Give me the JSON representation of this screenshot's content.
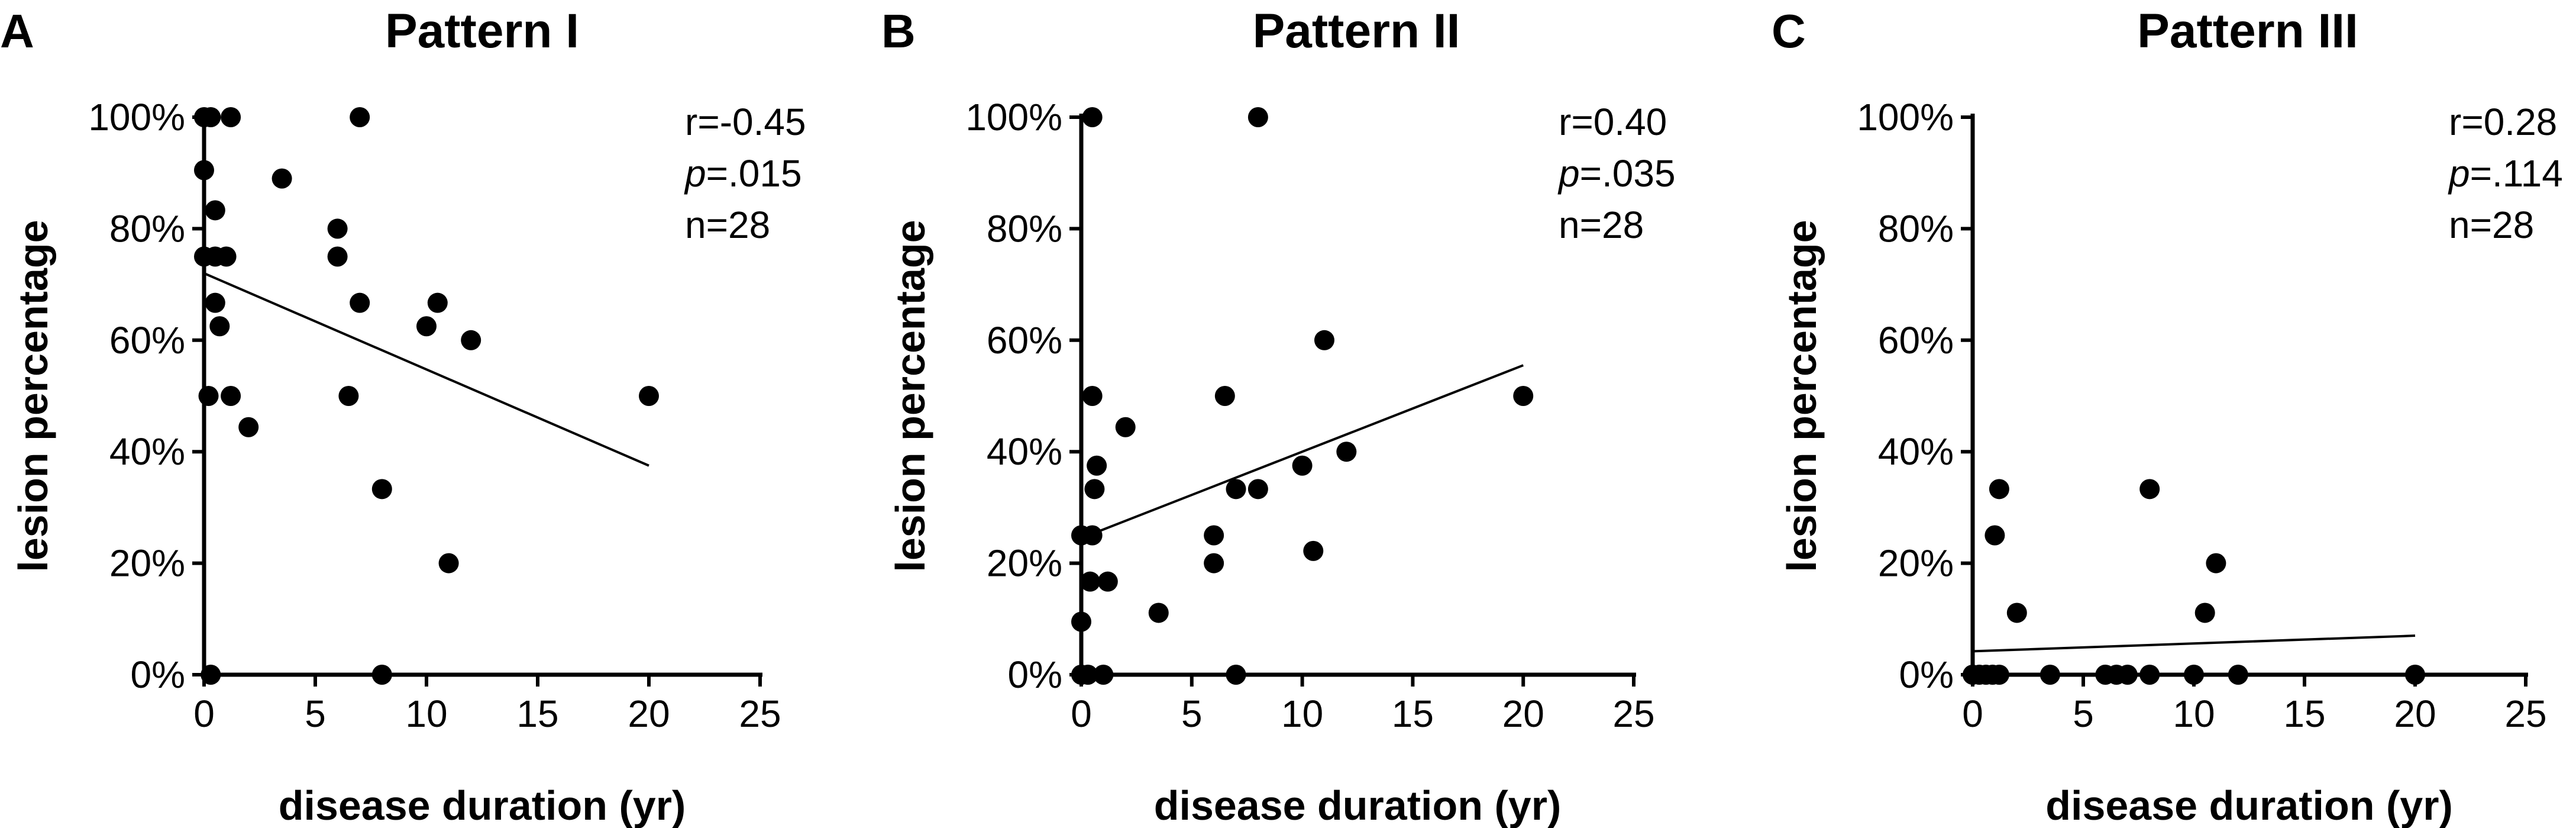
{
  "figure": {
    "ylabel": "lesion percentage",
    "xlabel": "disease duration (yr)",
    "x_ticks": [
      "0",
      "5",
      "10",
      "15",
      "20",
      "25"
    ],
    "y_ticks": [
      "0%",
      "20%",
      "40%",
      "60%",
      "80%",
      "100%"
    ]
  },
  "chart_data": [
    {
      "type": "scatter",
      "panel": "A",
      "title": "Pattern I",
      "xlabel": "disease duration (yr)",
      "ylabel": "lesion percentage",
      "xlim": [
        0,
        25
      ],
      "ylim": [
        0,
        100
      ],
      "stats": {
        "r": "r=-0.45",
        "p_symbol": "p",
        "p_value": "=.015",
        "n": "n=28"
      },
      "trendline": {
        "x": [
          0,
          20
        ],
        "y": [
          72,
          37.5
        ]
      },
      "points": [
        [
          0,
          100
        ],
        [
          0.3,
          100
        ],
        [
          1.2,
          100
        ],
        [
          7,
          100
        ],
        [
          0,
          90.5
        ],
        [
          3.5,
          89
        ],
        [
          0.5,
          83.3
        ],
        [
          0,
          75
        ],
        [
          0.5,
          75
        ],
        [
          1,
          75
        ],
        [
          6,
          80
        ],
        [
          6,
          75
        ],
        [
          0.5,
          66.7
        ],
        [
          7,
          66.7
        ],
        [
          10.5,
          66.7
        ],
        [
          0.7,
          62.5
        ],
        [
          10,
          62.5
        ],
        [
          12,
          60
        ],
        [
          0.2,
          50
        ],
        [
          1.2,
          50
        ],
        [
          6.5,
          50
        ],
        [
          20,
          50
        ],
        [
          2,
          44.4
        ],
        [
          8,
          33.3
        ],
        [
          11,
          20
        ],
        [
          0.3,
          0
        ],
        [
          8,
          0
        ]
      ]
    },
    {
      "type": "scatter",
      "panel": "B",
      "title": "Pattern II",
      "xlabel": "disease duration (yr)",
      "ylabel": "lesion percentage",
      "xlim": [
        0,
        25
      ],
      "ylim": [
        0,
        100
      ],
      "stats": {
        "r": "r=0.40",
        "p_symbol": "p",
        "p_value": "=.035",
        "n": "n=28"
      },
      "trendline": {
        "x": [
          0,
          20
        ],
        "y": [
          24.5,
          55.5
        ]
      },
      "points": [
        [
          0.5,
          100
        ],
        [
          8,
          100
        ],
        [
          11,
          60
        ],
        [
          0.5,
          50
        ],
        [
          6.5,
          50
        ],
        [
          20,
          50
        ],
        [
          2,
          44.4
        ],
        [
          12,
          40
        ],
        [
          0.7,
          37.5
        ],
        [
          10,
          37.5
        ],
        [
          0.6,
          33.3
        ],
        [
          7,
          33.3
        ],
        [
          8,
          33.3
        ],
        [
          0,
          25
        ],
        [
          0.5,
          25
        ],
        [
          6,
          25
        ],
        [
          10.5,
          22.2
        ],
        [
          6,
          20
        ],
        [
          0.4,
          16.7
        ],
        [
          1.2,
          16.7
        ],
        [
          3.5,
          11.1
        ],
        [
          0,
          9.5
        ],
        [
          0,
          0
        ],
        [
          0.3,
          0
        ],
        [
          1,
          0
        ],
        [
          7,
          0
        ]
      ]
    },
    {
      "type": "scatter",
      "panel": "C",
      "title": "Pattern III",
      "xlabel": "disease duration (yr)",
      "ylabel": "lesion percentage",
      "xlim": [
        0,
        25
      ],
      "ylim": [
        0,
        100
      ],
      "stats": {
        "r": "r=0.28",
        "p_symbol": "p",
        "p_value": "=.114",
        "n": "n=28"
      },
      "trendline": {
        "x": [
          0,
          20
        ],
        "y": [
          4.2,
          7
        ]
      },
      "points": [
        [
          1.2,
          33.3
        ],
        [
          8,
          33.3
        ],
        [
          1,
          25
        ],
        [
          11,
          20
        ],
        [
          2,
          11.1
        ],
        [
          10.5,
          11.1
        ],
        [
          0,
          0
        ],
        [
          0.3,
          0
        ],
        [
          0.6,
          0
        ],
        [
          0.9,
          0
        ],
        [
          1.2,
          0
        ],
        [
          3.5,
          0
        ],
        [
          6,
          0
        ],
        [
          6.5,
          0
        ],
        [
          7,
          0
        ],
        [
          8,
          0
        ],
        [
          10,
          0
        ],
        [
          12,
          0
        ],
        [
          20,
          0
        ]
      ]
    }
  ]
}
